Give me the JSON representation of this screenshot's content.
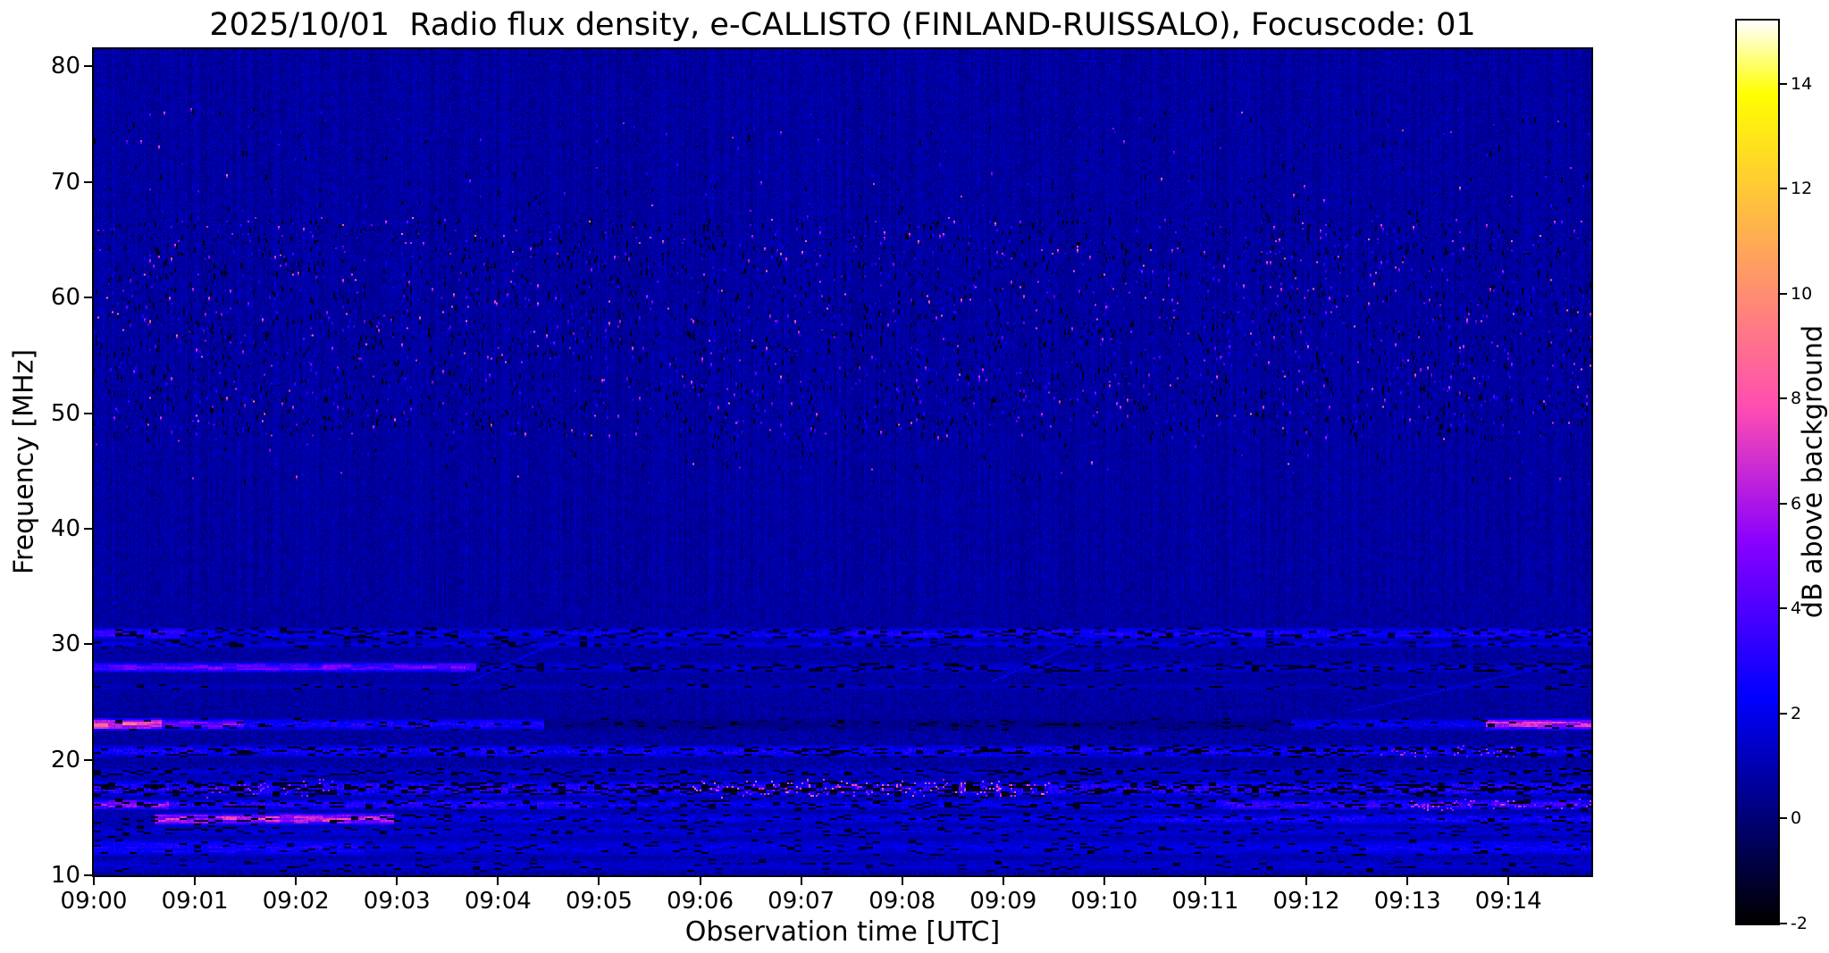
{
  "chart_data": {
    "type": "heatmap",
    "title": "2025/10/01  Radio flux density, e-CALLISTO (FINLAND-RUISSALO), Focuscode: 01",
    "xlabel": "Observation time [UTC]",
    "ylabel": "Frequency [MHz]",
    "colorbar_label": "dB above background",
    "colormap": "gnuplot2",
    "legend": "none",
    "grid": false,
    "x_ticks": [
      "09:00",
      "09:01",
      "09:02",
      "09:03",
      "09:04",
      "09:05",
      "09:06",
      "09:07",
      "09:08",
      "09:09",
      "09:10",
      "09:11",
      "09:12",
      "09:13",
      "09:14"
    ],
    "x_range_minutes": [
      0,
      14.82
    ],
    "y_ticks": [
      10,
      20,
      30,
      40,
      50,
      60,
      70,
      80
    ],
    "ylim": [
      10,
      81.5
    ],
    "colorbar_ticks": [
      -2,
      0,
      2,
      4,
      6,
      8,
      10,
      12,
      14
    ],
    "clim": [
      -2,
      15.2
    ],
    "background_level_db": 0.7,
    "noise_amplitude_db": 0.5,
    "speckles": {
      "fmin": 44,
      "fmax": 76.5,
      "core_fmin": 48,
      "core_fmax": 67,
      "core_frac": 0.78,
      "bright_count": 1400,
      "dark_count": 2600,
      "vmin": 2.5,
      "vmax": 9.5,
      "dark_level": -1.6
    },
    "bands": [
      {
        "freq": 31.0,
        "width": 0.55,
        "segments": [
          [
            0,
            0.06,
            3.2
          ],
          [
            0.06,
            0.5,
            1.6
          ],
          [
            0.5,
            1.01,
            2.2
          ]
        ],
        "dark": 0.3,
        "noise": 1.2
      },
      {
        "freq": 30.1,
        "width": 0.35,
        "segments": [
          [
            0,
            1.01,
            1.2
          ]
        ],
        "dark": 0.22,
        "noise": 0.8
      },
      {
        "freq": 28.0,
        "width": 0.5,
        "segments": [
          [
            0,
            0.255,
            4.2
          ],
          [
            0.255,
            1.01,
            0.9
          ]
        ],
        "dark": 0.3,
        "dark_t0": 0.255,
        "noise": 1.0
      },
      {
        "freq": 26.3,
        "width": 0.3,
        "segments": [
          [
            0,
            1.01,
            0.5
          ]
        ],
        "dark": 0.12,
        "noise": 0.6
      },
      {
        "freq": 23.2,
        "width": 0.55,
        "segments": [
          [
            0,
            0.045,
            8.5
          ],
          [
            0.045,
            0.1,
            4.5
          ],
          [
            0.1,
            0.3,
            2.2
          ],
          [
            0.3,
            0.8,
            -0.5
          ],
          [
            0.8,
            0.93,
            1.5
          ],
          [
            0.93,
            1.01,
            6.5
          ]
        ],
        "dark": 0.15,
        "noise": 1.2
      },
      {
        "freq": 20.8,
        "width": 0.6,
        "segments": [
          [
            0,
            1.01,
            2.0
          ]
        ],
        "dark": 0.3,
        "noise": 1.6,
        "hot": [
          [
            0.86,
            0.95,
            0.1,
            5,
            2
          ]
        ]
      },
      {
        "freq": 18.9,
        "width": 0.4,
        "segments": [
          [
            0,
            1.01,
            0.8
          ]
        ],
        "dark": 0.25,
        "noise": 1.0
      },
      {
        "freq": 17.6,
        "width": 0.8,
        "segments": [
          [
            0,
            1.01,
            2.4
          ]
        ],
        "dark": 0.4,
        "noise": 2.0,
        "hot": [
          [
            0.4,
            0.64,
            0.18,
            5.5,
            3.5
          ],
          [
            0.07,
            0.16,
            0.1,
            5,
            2
          ]
        ]
      },
      {
        "freq": 16.1,
        "width": 0.5,
        "segments": [
          [
            0,
            0.05,
            5
          ],
          [
            0.05,
            0.33,
            2.5
          ],
          [
            0.33,
            0.75,
            1.5
          ],
          [
            0.75,
            1.01,
            3.0
          ]
        ],
        "dark": 0.2,
        "noise": 1.6,
        "hot": [
          [
            0.88,
            1.01,
            0.15,
            5,
            2.5
          ]
        ]
      },
      {
        "freq": 15.0,
        "width": 0.55,
        "segments": [
          [
            0.04,
            0.2,
            6.5
          ],
          [
            0.2,
            0.7,
            1.2
          ],
          [
            0.7,
            1.01,
            2.0
          ]
        ],
        "dark": 0.15,
        "noise": 1.4
      },
      {
        "freq": 13.8,
        "width": 0.5,
        "segments": [
          [
            0,
            1.01,
            1.0
          ]
        ],
        "dark": 0.15,
        "noise": 1.0
      },
      {
        "freq": 12.4,
        "width": 0.8,
        "segments": [
          [
            0,
            0.18,
            2.2
          ],
          [
            0.18,
            0.85,
            1.2
          ],
          [
            0.85,
            1.01,
            1.8
          ]
        ],
        "dark": 0.1,
        "noise": 1.0
      },
      {
        "freq": 11.0,
        "width": 0.6,
        "segments": [
          [
            0,
            1.01,
            0.8
          ]
        ],
        "dark": 0.1,
        "noise": 0.8
      }
    ],
    "diagonals": [
      {
        "t0": 0.25,
        "f0": 26.8,
        "t1": 0.32,
        "f1": 30.9,
        "level": 2.2
      },
      {
        "t0": 0.6,
        "f0": 26.8,
        "t1": 0.67,
        "f1": 30.9,
        "level": 2.2
      },
      {
        "t0": 0.84,
        "f0": 24.2,
        "t1": 0.96,
        "f1": 27.8,
        "level": 1.8
      }
    ]
  }
}
